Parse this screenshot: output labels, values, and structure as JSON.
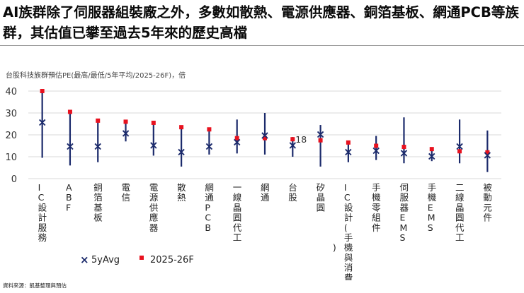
{
  "headline": "AI族群除了伺服器組裝廠之外，多數如散熱、電源供應器、銅箔基板、網通PCB等族群，其估值已攀至過去5年來的歷史高檔",
  "source": "資料來源：凱基整理與預估",
  "chart_data": {
    "type": "range-dot",
    "title": "台股科技族群預估PE(最高/最低/5年平均/2025-26F)，倍",
    "ylim": [
      0,
      40
    ],
    "yticks": [
      0,
      10,
      20,
      30,
      40
    ],
    "categories": [
      "IC設計服務",
      "ABF",
      "銅箔基板",
      "電信",
      "電源供應器",
      "散熱",
      "網通PCB",
      "一線晶圓代工",
      "網通",
      "台股",
      "矽晶圓",
      "IC設計(手機與消費性)",
      "手機零組件",
      "伺服器EMS",
      "手機EMS",
      "二線晶圓代工",
      "被動元件"
    ],
    "high": [
      40,
      30.5,
      26.5,
      26,
      26,
      23.5,
      22.5,
      27,
      30,
      19,
      24.5,
      17,
      19.5,
      28,
      14,
      27,
      22
    ],
    "low": [
      9.5,
      6,
      7.5,
      17,
      10.5,
      5.5,
      11,
      11.5,
      11,
      10,
      5.5,
      7.5,
      8.5,
      7,
      8,
      7,
      3
    ],
    "avg_5y": [
      26,
      15,
      15,
      21,
      15.5,
      12.5,
      15,
      17,
      20,
      15.5,
      20.5,
      12.5,
      13,
      12,
      10.5,
      15,
      11
    ],
    "forecast_2025_26F": [
      40,
      30.5,
      26.5,
      26,
      25.5,
      23.5,
      22.5,
      18.5,
      18.5,
      18,
      17.5,
      16.5,
      15,
      14.5,
      13.5,
      12.5,
      12
    ],
    "annotations": [
      {
        "category": "台股",
        "text": "18"
      }
    ],
    "legend": [
      {
        "symbol": "×",
        "color": "#1b2a6b",
        "label": "5yAvg"
      },
      {
        "symbol": "■",
        "color": "#e8121f",
        "label": "2025-26F"
      }
    ],
    "colors": {
      "range": "#1b2a6b",
      "avg": "#1b2a6b",
      "forecast": "#e8121f",
      "grid": "#d8d8d8"
    }
  }
}
